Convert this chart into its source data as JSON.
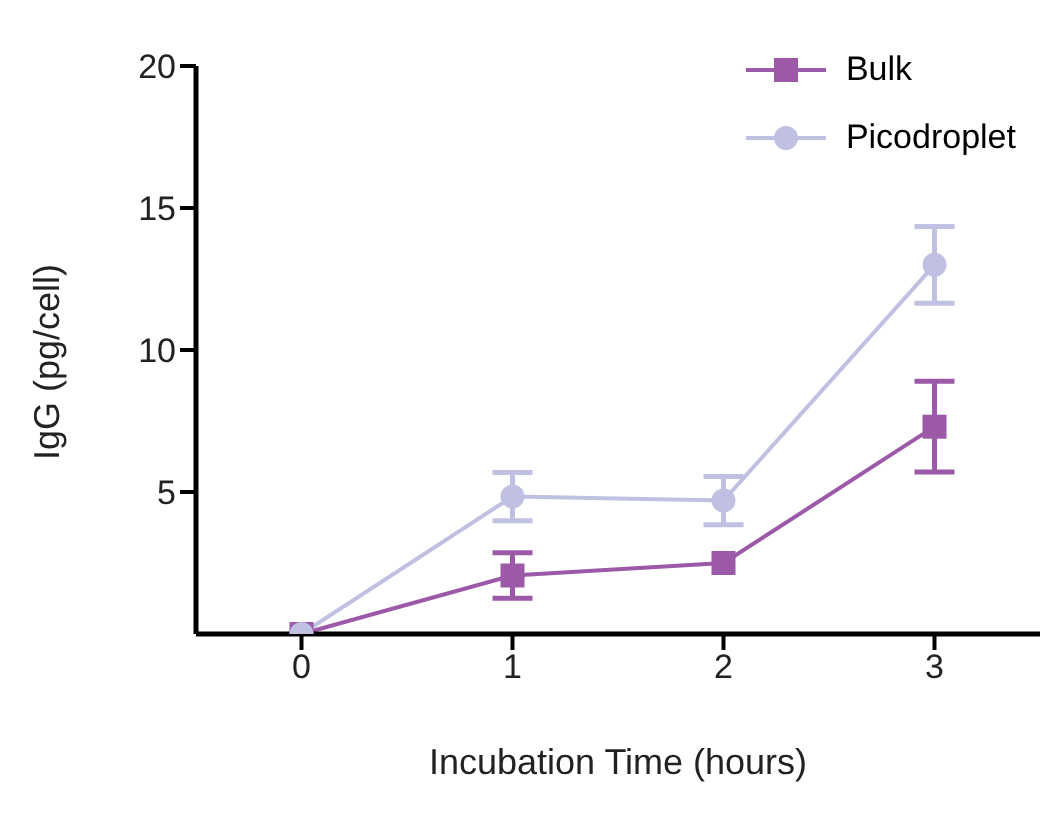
{
  "chart_data": {
    "type": "line",
    "xlabel": "Incubation Time (hours)",
    "ylabel": "IgG (pg/cell)",
    "x": [
      0,
      1,
      2,
      3
    ],
    "xlim": [
      -0.5,
      3.5
    ],
    "xticks": [
      0,
      1,
      2,
      3
    ],
    "ylim": [
      0,
      20
    ],
    "yticks": [
      5,
      10,
      15,
      20
    ],
    "legend": "top right",
    "line_style": "solid",
    "series": [
      {
        "name": "Bulk",
        "color": "#9b59a8",
        "marker": "square",
        "values": [
          0,
          2.06,
          2.5,
          7.3
        ],
        "errors": [
          null,
          0.8,
          null,
          1.6
        ]
      },
      {
        "name": "Picodroplet",
        "color": "#c0c0e2",
        "marker": "circle",
        "values": [
          0,
          4.84,
          4.7,
          13.0
        ],
        "errors": [
          null,
          0.85,
          0.85,
          1.35
        ]
      }
    ]
  }
}
